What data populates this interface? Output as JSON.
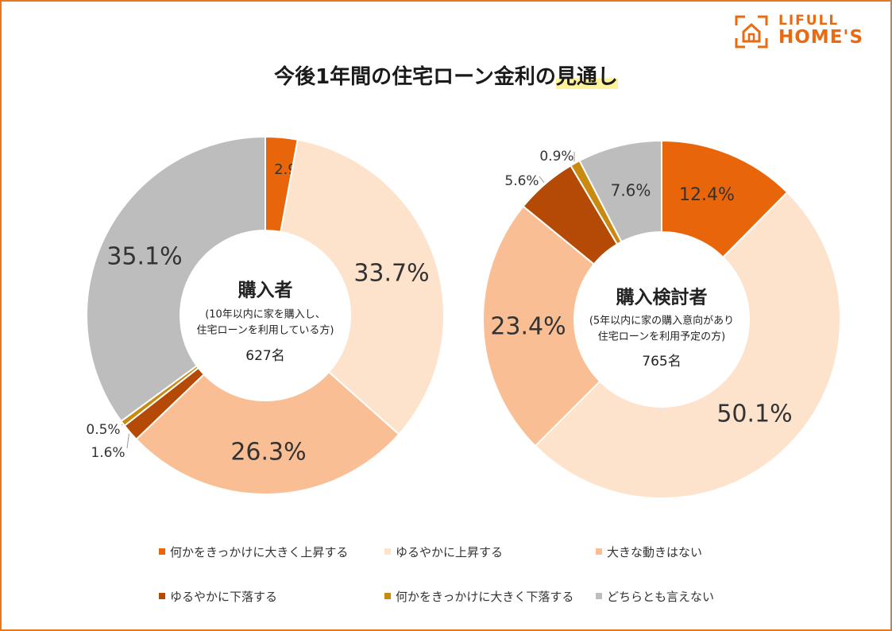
{
  "title_main": "今後1年間の住宅ローン金利の",
  "title_highlight": "見通し",
  "logo": {
    "top": "LIFULL",
    "bottom": "HOME'S",
    "accent": "#ea6a12"
  },
  "chart_data": [
    {
      "type": "pie",
      "center_title": "購入者",
      "center_sub1": "(10年以内に家を購入し、",
      "center_sub2": "住宅ローンを利用している方)",
      "center_count": "627名",
      "categories": [
        "何かをきっかけに大きく上昇する",
        "ゆるやかに上昇する",
        "大きな動きはない",
        "ゆるやかに下落する",
        "何かをきっかけに大きく下落する",
        "どちらとも言えない"
      ],
      "values": [
        2.9,
        33.7,
        26.3,
        1.6,
        0.5,
        35.1
      ],
      "labels": [
        "2.9%",
        "33.7%",
        "26.3%",
        "1.6%",
        "0.5%",
        "35.1%"
      ]
    },
    {
      "type": "pie",
      "center_title": "購入検討者",
      "center_sub1": "(5年以内に家の購入意向があり",
      "center_sub2": "住宅ローンを利用予定の方)",
      "center_count": "765名",
      "categories": [
        "何かをきっかけに大きく上昇する",
        "ゆるやかに上昇する",
        "大きな動きはない",
        "ゆるやかに下落する",
        "何かをきっかけに大きく下落する",
        "どちらとも言えない"
      ],
      "values": [
        12.4,
        50.1,
        23.4,
        5.6,
        0.9,
        7.6
      ],
      "labels": [
        "12.4%",
        "50.1%",
        "23.4%",
        "5.6%",
        "0.9%",
        "7.6%"
      ]
    }
  ],
  "legend": [
    {
      "label": "何かをきっかけに大きく上昇する",
      "color": "#e8650a"
    },
    {
      "label": "ゆるやかに上昇する",
      "color": "#fde2cc"
    },
    {
      "label": "大きな動きはない",
      "color": "#f9be94"
    },
    {
      "label": "ゆるやかに下落する",
      "color": "#b44a05"
    },
    {
      "label": "何かをきっかけに大きく下落する",
      "color": "#c98a12"
    },
    {
      "label": "どちらとも言えない",
      "color": "#bdbdbd"
    }
  ]
}
